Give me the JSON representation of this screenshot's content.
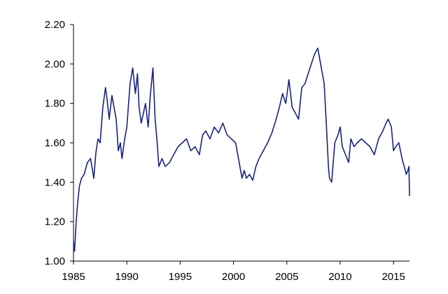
{
  "chart_data": {
    "type": "line",
    "title": "",
    "xlabel": "",
    "ylabel": "",
    "xlim": [
      1985,
      2016.5
    ],
    "ylim": [
      1.0,
      2.2
    ],
    "x_ticks": [
      1985,
      1990,
      1995,
      2000,
      2005,
      2010,
      2015
    ],
    "x_tick_labels": [
      "1985",
      "1990",
      "1995",
      "2000",
      "2005",
      "2010",
      "2015"
    ],
    "y_ticks": [
      1.0,
      1.2,
      1.4,
      1.6,
      1.8,
      2.0,
      2.2
    ],
    "y_tick_labels": [
      "1.00",
      "1.20",
      "1.40",
      "1.60",
      "1.80",
      "2.00",
      "2.20"
    ],
    "grid": false,
    "legend": "none",
    "line_color": "#1a237e",
    "series": [
      {
        "x": [
          1985.0,
          1985.1,
          1985.25,
          1985.4,
          1985.55,
          1985.75,
          1986.0,
          1986.3,
          1986.6,
          1986.9,
          1987.1,
          1987.3,
          1987.5,
          1987.75,
          1988.0,
          1988.15,
          1988.35,
          1988.6,
          1988.8,
          1989.0,
          1989.2,
          1989.4,
          1989.55,
          1989.8,
          1990.0,
          1990.3,
          1990.55,
          1990.8,
          1991.0,
          1991.15,
          1991.35,
          1991.55,
          1991.75,
          1992.0,
          1992.2,
          1992.45,
          1992.65,
          1992.85,
          1993.0,
          1993.3,
          1993.6,
          1994.0,
          1994.4,
          1994.8,
          1995.2,
          1995.6,
          1996.0,
          1996.4,
          1996.8,
          1997.1,
          1997.4,
          1997.8,
          1998.2,
          1998.6,
          1999.0,
          1999.4,
          1999.8,
          2000.2,
          2000.6,
          2000.8,
          2001.0,
          2001.2,
          2001.5,
          2001.8,
          2002.1,
          2002.4,
          2002.8,
          2003.2,
          2003.6,
          2004.0,
          2004.3,
          2004.6,
          2004.9,
          2005.2,
          2005.5,
          2005.8,
          2006.1,
          2006.4,
          2006.7,
          2007.0,
          2007.3,
          2007.6,
          2007.9,
          2008.1,
          2008.3,
          2008.5,
          2008.7,
          2008.9,
          2009.0,
          2009.2,
          2009.5,
          2009.8,
          2010.0,
          2010.2,
          2010.5,
          2010.8,
          2011.0,
          2011.3,
          2011.6,
          2012.0,
          2012.4,
          2012.8,
          2013.2,
          2013.6,
          2014.0,
          2014.3,
          2014.5,
          2014.8,
          2015.0,
          2015.2,
          2015.5,
          2015.8,
          2016.0,
          2016.2,
          2016.35,
          2016.45,
          2016.5
        ],
        "y": [
          1.1,
          1.05,
          1.2,
          1.3,
          1.38,
          1.42,
          1.44,
          1.5,
          1.52,
          1.42,
          1.55,
          1.62,
          1.6,
          1.78,
          1.88,
          1.82,
          1.72,
          1.84,
          1.78,
          1.72,
          1.56,
          1.6,
          1.52,
          1.62,
          1.68,
          1.9,
          1.98,
          1.85,
          1.95,
          1.78,
          1.7,
          1.75,
          1.8,
          1.68,
          1.84,
          1.98,
          1.72,
          1.6,
          1.48,
          1.52,
          1.48,
          1.5,
          1.54,
          1.58,
          1.6,
          1.62,
          1.56,
          1.58,
          1.54,
          1.64,
          1.66,
          1.62,
          1.68,
          1.65,
          1.7,
          1.64,
          1.62,
          1.6,
          1.48,
          1.42,
          1.46,
          1.42,
          1.44,
          1.41,
          1.48,
          1.52,
          1.56,
          1.6,
          1.65,
          1.72,
          1.78,
          1.85,
          1.8,
          1.92,
          1.78,
          1.75,
          1.72,
          1.88,
          1.9,
          1.95,
          2.0,
          2.05,
          2.08,
          2.02,
          1.96,
          1.9,
          1.7,
          1.48,
          1.42,
          1.4,
          1.6,
          1.64,
          1.68,
          1.58,
          1.54,
          1.5,
          1.62,
          1.58,
          1.6,
          1.62,
          1.6,
          1.58,
          1.54,
          1.62,
          1.66,
          1.7,
          1.72,
          1.68,
          1.56,
          1.58,
          1.6,
          1.52,
          1.48,
          1.44,
          1.46,
          1.48,
          1.33
        ]
      }
    ]
  }
}
